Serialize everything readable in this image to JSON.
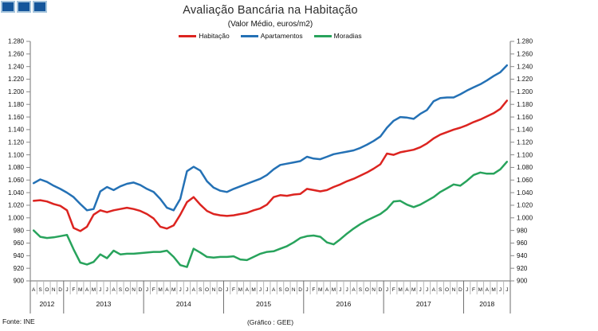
{
  "header": {
    "title": "Avaliação Bancária na Habitação",
    "subtitle": "(Valor Médio, euros/m2)"
  },
  "logo": {
    "square_count": 3,
    "fill": "#15569B",
    "border": "#A5C4DC"
  },
  "footer": {
    "source": "Fonte: INE",
    "credit": "(Gráfico : GEE)"
  },
  "chart_data": {
    "type": "line",
    "title": "Avaliação Bancária na Habitação",
    "subtitle": "(Valor Médio, euros/m2)",
    "xlabel": "",
    "ylabel": "euros/m2",
    "grid": false,
    "legend_position": "top-center",
    "ylim": [
      900,
      1280
    ],
    "ystep": 20,
    "ytick_labels": [
      "900",
      "920",
      "940",
      "960",
      "980",
      "1.000",
      "1.020",
      "1.040",
      "1.060",
      "1.080",
      "1.100",
      "1.120",
      "1.140",
      "1.160",
      "1.180",
      "1.200",
      "1.220",
      "1.240",
      "1.260",
      "1.280"
    ],
    "axis_color": "#8a8a8a",
    "month_separator_color": "#b8b8b8",
    "year_separator_color": "#6e6e6e",
    "x_month_labels": [
      "A",
      "S",
      "O",
      "N",
      "D",
      "J",
      "F",
      "M",
      "A",
      "M",
      "J",
      "J",
      "A",
      "S",
      "O",
      "N",
      "D",
      "J",
      "F",
      "M",
      "A",
      "M",
      "J",
      "J",
      "A",
      "S",
      "O",
      "N",
      "D",
      "J",
      "F",
      "M",
      "A",
      "M",
      "J",
      "J",
      "A",
      "S",
      "O",
      "N",
      "D",
      "J",
      "F",
      "M",
      "A",
      "M",
      "J",
      "J",
      "A",
      "S",
      "O",
      "N",
      "D",
      "J",
      "F",
      "M",
      "A",
      "M",
      "J",
      "J",
      "A",
      "S",
      "O",
      "N",
      "D",
      "J",
      "F",
      "M",
      "A",
      "M",
      "J",
      "J"
    ],
    "year_groups": [
      {
        "label": "2012",
        "months": 5
      },
      {
        "label": "2013",
        "months": 12
      },
      {
        "label": "2014",
        "months": 12
      },
      {
        "label": "2015",
        "months": 12
      },
      {
        "label": "2016",
        "months": 12
      },
      {
        "label": "2017",
        "months": 12
      },
      {
        "label": "2018",
        "months": 7
      }
    ],
    "series": [
      {
        "name": "Habitação",
        "color": "#DC2420",
        "values": [
          1027,
          1028,
          1026,
          1022,
          1019,
          1012,
          984,
          979,
          986,
          1005,
          1012,
          1009,
          1012,
          1014,
          1016,
          1014,
          1011,
          1006,
          999,
          986,
          983,
          988,
          1005,
          1025,
          1033,
          1021,
          1011,
          1006,
          1004,
          1003,
          1004,
          1006,
          1008,
          1012,
          1015,
          1021,
          1033,
          1036,
          1035,
          1037,
          1038,
          1046,
          1044,
          1042,
          1044,
          1049,
          1053,
          1058,
          1062,
          1067,
          1072,
          1078,
          1085,
          1102,
          1100,
          1104,
          1106,
          1108,
          1112,
          1118,
          1126,
          1132,
          1136,
          1140,
          1143,
          1147,
          1152,
          1156,
          1161,
          1166,
          1173,
          1186
        ]
      },
      {
        "name": "Apartamentos",
        "color": "#2471B5",
        "values": [
          1055,
          1061,
          1057,
          1051,
          1046,
          1040,
          1033,
          1022,
          1012,
          1014,
          1042,
          1049,
          1044,
          1050,
          1054,
          1056,
          1052,
          1046,
          1041,
          1030,
          1016,
          1012,
          1030,
          1074,
          1081,
          1075,
          1058,
          1048,
          1043,
          1041,
          1046,
          1050,
          1054,
          1058,
          1062,
          1068,
          1077,
          1084,
          1086,
          1088,
          1090,
          1097,
          1094,
          1093,
          1097,
          1101,
          1103,
          1105,
          1107,
          1111,
          1116,
          1122,
          1129,
          1143,
          1154,
          1160,
          1159,
          1157,
          1165,
          1171,
          1185,
          1190,
          1191,
          1191,
          1196,
          1202,
          1207,
          1212,
          1218,
          1225,
          1231,
          1242
        ]
      },
      {
        "name": "Moradias",
        "color": "#28A35C",
        "values": [
          980,
          970,
          968,
          969,
          971,
          973,
          950,
          929,
          926,
          930,
          942,
          936,
          948,
          942,
          943,
          943,
          944,
          945,
          946,
          946,
          948,
          938,
          925,
          922,
          951,
          945,
          938,
          937,
          938,
          938,
          939,
          934,
          933,
          938,
          943,
          946,
          947,
          951,
          955,
          961,
          968,
          971,
          972,
          970,
          961,
          958,
          966,
          975,
          983,
          990,
          996,
          1001,
          1006,
          1014,
          1026,
          1027,
          1021,
          1017,
          1021,
          1027,
          1033,
          1041,
          1047,
          1053,
          1051,
          1059,
          1068,
          1072,
          1070,
          1070,
          1077,
          1089
        ]
      }
    ]
  }
}
